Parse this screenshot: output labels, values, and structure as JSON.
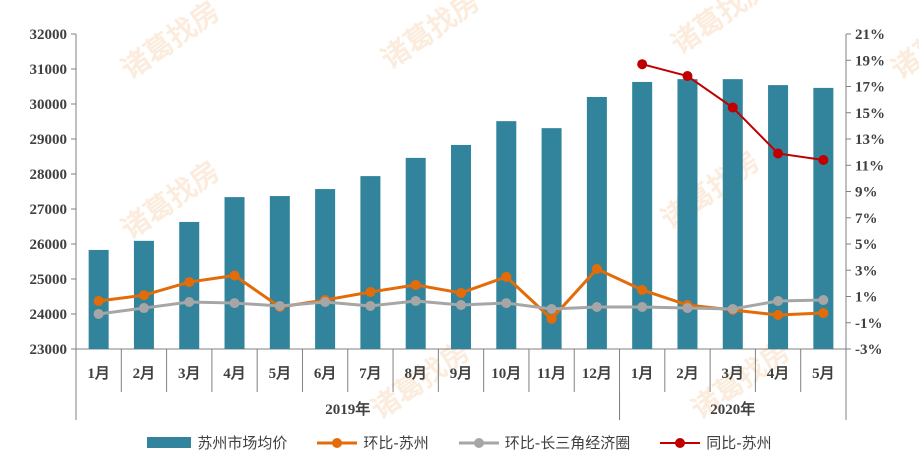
{
  "chart_data": {
    "type": "bar+line",
    "categories": [
      "1月",
      "2月",
      "3月",
      "4月",
      "5月",
      "6月",
      "7月",
      "8月",
      "9月",
      "10月",
      "11月",
      "12月",
      "1月",
      "2月",
      "3月",
      "4月",
      "5月"
    ],
    "groups": [
      {
        "label": "2019年",
        "span": 12
      },
      {
        "label": "2020年",
        "span": 5
      }
    ],
    "left_axis": {
      "range": [
        23000,
        32000
      ],
      "ticks": [
        "23000",
        "24000",
        "25000",
        "26000",
        "27000",
        "28000",
        "29000",
        "30000",
        "31000",
        "32000"
      ]
    },
    "right_axis": {
      "range": [
        -3,
        21
      ],
      "ticks": [
        "-3%",
        "-1%",
        "1%",
        "3%",
        "5%",
        "7%",
        "9%",
        "11%",
        "13%",
        "15%",
        "17%",
        "19%",
        "21%"
      ]
    },
    "grid": false,
    "legend": "bottom",
    "series": [
      {
        "name": "苏州市场均价",
        "type": "bar",
        "axis": "left",
        "color": "#31849b",
        "values": [
          25830,
          26090,
          26630,
          27340,
          27370,
          27570,
          27940,
          28460,
          28830,
          29510,
          29310,
          30200,
          30630,
          30710,
          30710,
          30540,
          30460
        ]
      },
      {
        "name": "环比-苏州",
        "type": "line",
        "axis": "right",
        "color": "#e36c09",
        "values": [
          0.66,
          1.1,
          2.1,
          2.6,
          0.2,
          0.73,
          1.34,
          1.88,
          1.27,
          2.5,
          -0.7,
          3.1,
          1.5,
          0.35,
          -0.03,
          -0.41,
          -0.26
        ]
      },
      {
        "name": "环比-长三角经济圈",
        "type": "line",
        "axis": "right",
        "color": "#a6a6a6",
        "values": [
          -0.33,
          0.12,
          0.58,
          0.5,
          0.28,
          0.58,
          0.28,
          0.66,
          0.35,
          0.5,
          0.05,
          0.2,
          0.2,
          0.12,
          0.05,
          0.66,
          0.73
        ]
      },
      {
        "name": "同比-苏州",
        "type": "line",
        "axis": "right",
        "color": "#c00000",
        "values": [
          null,
          null,
          null,
          null,
          null,
          null,
          null,
          null,
          null,
          null,
          null,
          null,
          18.7,
          17.8,
          15.4,
          11.9,
          11.4
        ]
      }
    ],
    "watermark": "诸葛找房"
  }
}
